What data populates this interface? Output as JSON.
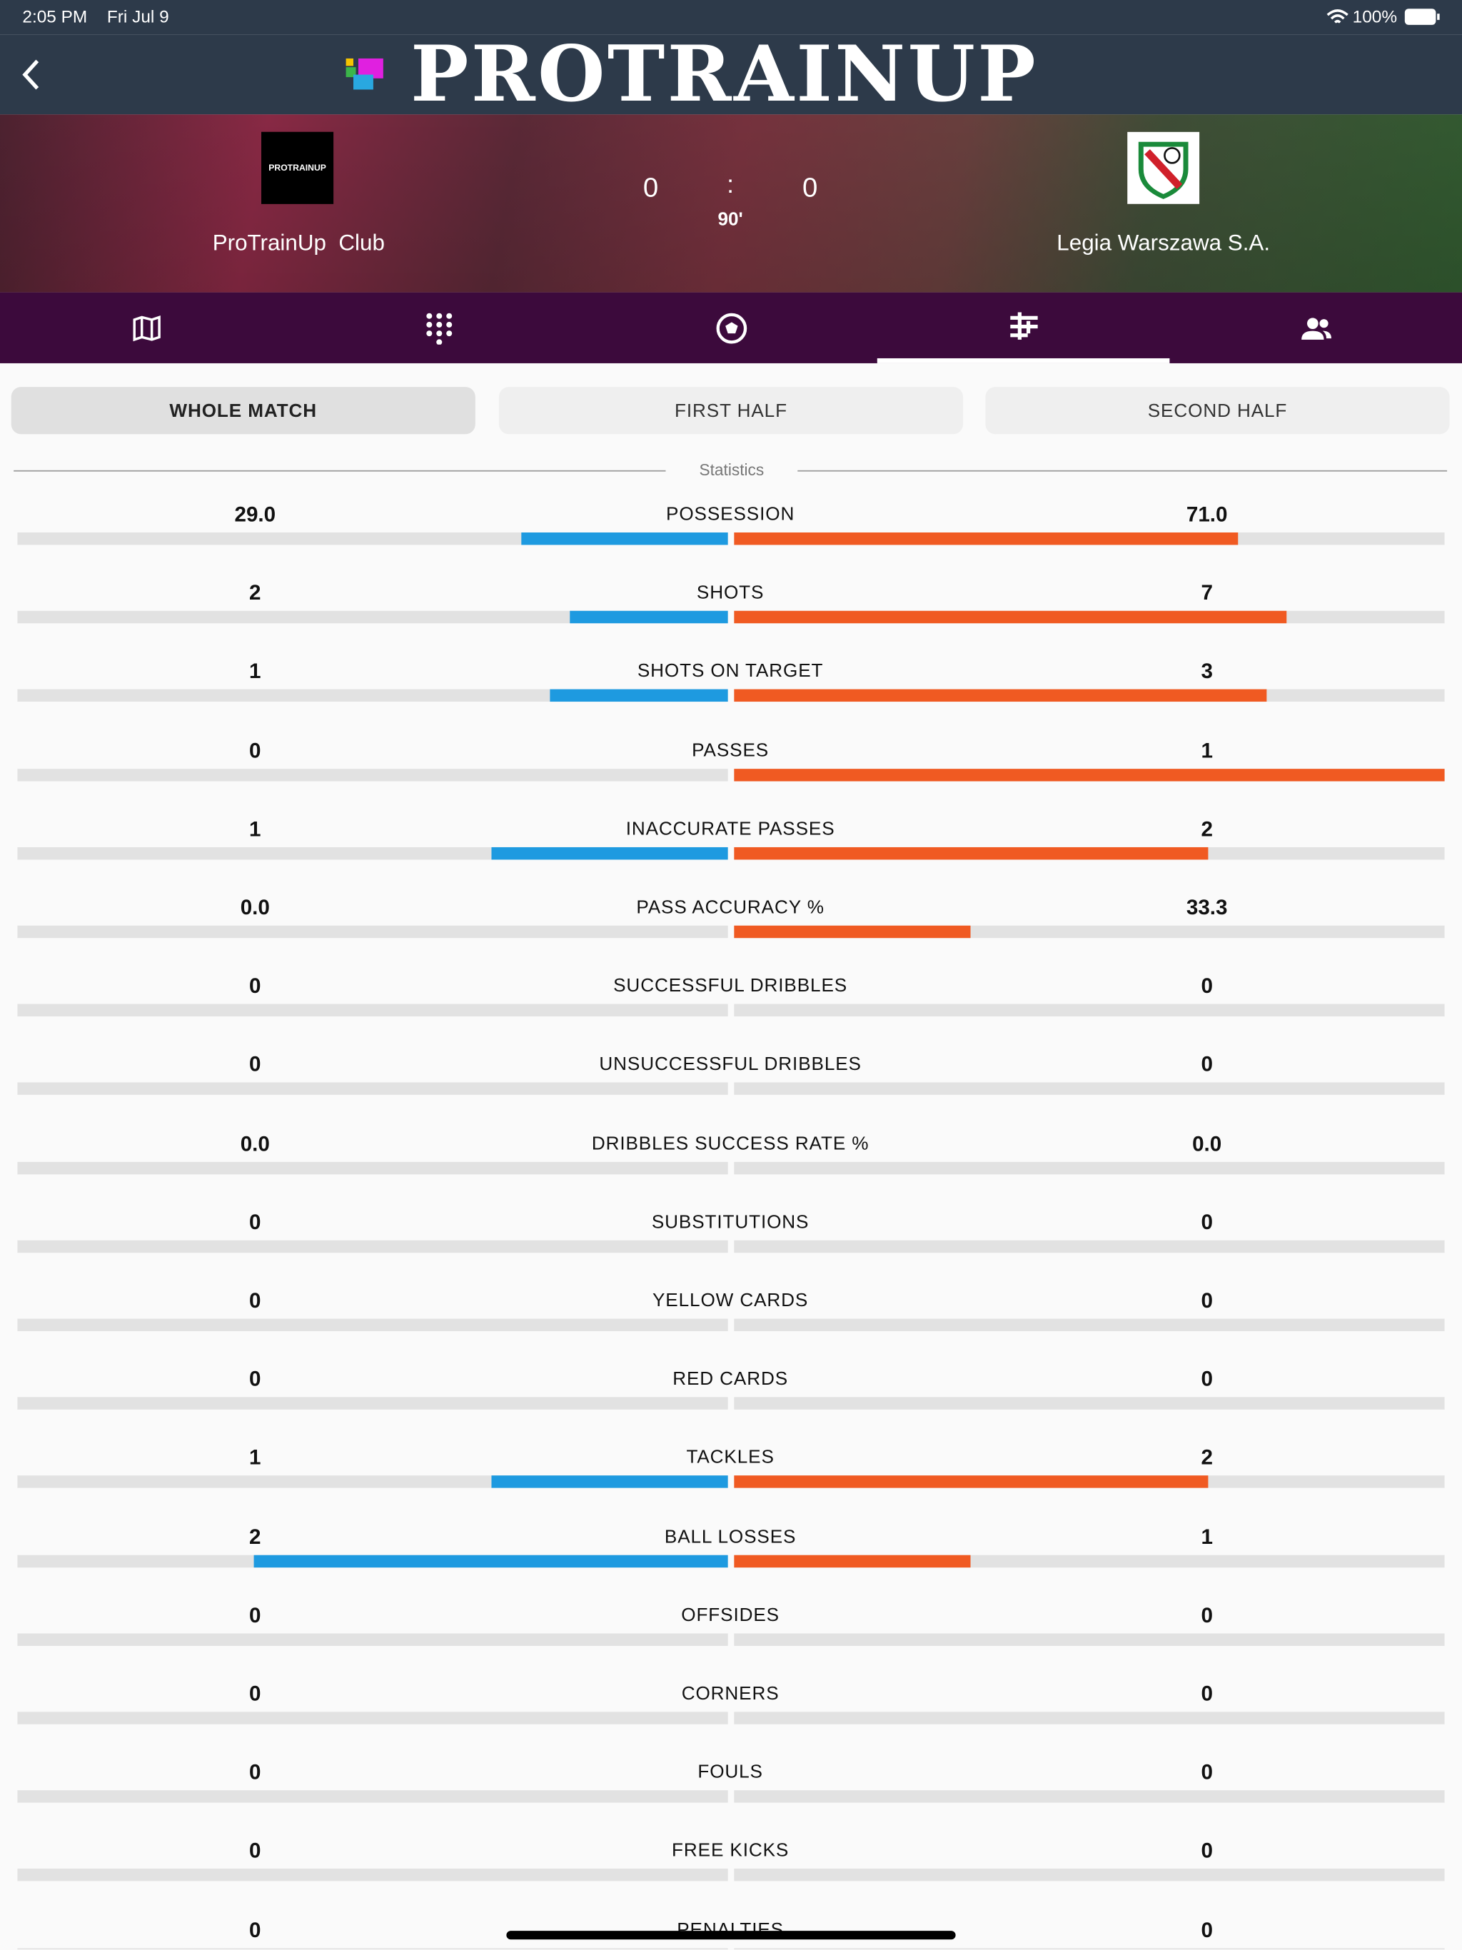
{
  "status_bar": {
    "time": "2:05 PM",
    "date": "Fri Jul 9",
    "battery": "100%"
  },
  "header": {
    "title": "PROTRAINUP"
  },
  "match": {
    "home": {
      "name": "ProTrainUp  Club",
      "logo_text": "PROTRAINUP"
    },
    "away": {
      "name": "Legia Warszawa S.A."
    },
    "score": {
      "home": "0",
      "separator": ":",
      "away": "0"
    },
    "minute": "90'"
  },
  "periods": [
    "WHOLE MATCH",
    "FIRST HALF",
    "SECOND HALF"
  ],
  "statistics": {
    "title": "Statistics",
    "rows": [
      {
        "label": "POSSESSION",
        "home": "29.0",
        "away": "71.0"
      },
      {
        "label": "SHOTS",
        "home": "2",
        "away": "7"
      },
      {
        "label": "SHOTS ON TARGET",
        "home": "1",
        "away": "3"
      },
      {
        "label": "PASSES",
        "home": "0",
        "away": "1"
      },
      {
        "label": "INACCURATE PASSES",
        "home": "1",
        "away": "2"
      },
      {
        "label": "PASS ACCURACY %",
        "home": "0.0",
        "away": "33.3"
      },
      {
        "label": "SUCCESSFUL DRIBBLES",
        "home": "0",
        "away": "0"
      },
      {
        "label": "UNSUCCESSFUL DRIBBLES",
        "home": "0",
        "away": "0"
      },
      {
        "label": "DRIBBLES SUCCESS RATE %",
        "home": "0.0",
        "away": "0.0"
      },
      {
        "label": "SUBSTITUTIONS",
        "home": "0",
        "away": "0"
      },
      {
        "label": "YELLOW CARDS",
        "home": "0",
        "away": "0"
      },
      {
        "label": "RED CARDS",
        "home": "0",
        "away": "0"
      },
      {
        "label": "TACKLES",
        "home": "1",
        "away": "2"
      },
      {
        "label": "BALL LOSSES",
        "home": "2",
        "away": "1"
      },
      {
        "label": "OFFSIDES",
        "home": "0",
        "away": "0"
      },
      {
        "label": "CORNERS",
        "home": "0",
        "away": "0"
      },
      {
        "label": "FOULS",
        "home": "0",
        "away": "0"
      },
      {
        "label": "FREE KICKS",
        "home": "0",
        "away": "0"
      },
      {
        "label": "PENALTIES",
        "home": "0",
        "away": "0"
      }
    ]
  }
}
